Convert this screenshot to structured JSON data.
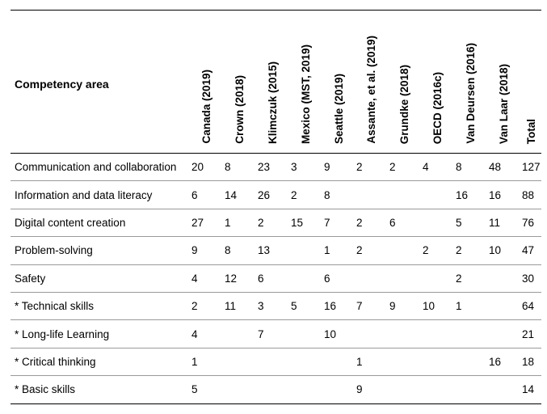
{
  "table": {
    "header_area": "Competency area",
    "columns": [
      "Canada  (2019)",
      "Crown (2018)",
      "Klimczuk  (2015)",
      "Mexico (MST, 2019)",
      "Seattle  (2019)",
      "Assante, et al.  (2019)",
      "Grundke  (2018)",
      "OECD  (2016c)",
      "Van Deursen  (2016)",
      "Van Laar (2018)",
      "Total"
    ],
    "rows": [
      {
        "label": "Communication and collaboration",
        "cells": [
          "20",
          "8",
          "23",
          "3",
          "9",
          "2",
          "2",
          "4",
          "8",
          "48",
          "127"
        ]
      },
      {
        "label": "Information and data literacy",
        "cells": [
          "6",
          "14",
          "26",
          "2",
          "8",
          "",
          "",
          "",
          "16",
          "16",
          "88"
        ]
      },
      {
        "label": "Digital content creation",
        "cells": [
          "27",
          "1",
          "2",
          "15",
          "7",
          "2",
          "6",
          "",
          "5",
          "11",
          "76"
        ]
      },
      {
        "label": "Problem-solving",
        "cells": [
          "9",
          "8",
          "13",
          "",
          "1",
          "2",
          "",
          "2",
          "2",
          "10",
          "47"
        ]
      },
      {
        "label": "Safety",
        "cells": [
          "4",
          "12",
          "6",
          "",
          "6",
          "",
          "",
          "",
          "2",
          "",
          "30"
        ]
      },
      {
        "label": "* Technical skills",
        "cells": [
          "2",
          "11",
          "3",
          "5",
          "16",
          "7",
          "9",
          "10",
          "1",
          "",
          "64"
        ]
      },
      {
        "label": "* Long-life Learning",
        "cells": [
          "4",
          "",
          "7",
          "",
          "10",
          "",
          "",
          "",
          "",
          "",
          "21"
        ]
      },
      {
        "label": "* Critical thinking",
        "cells": [
          "1",
          "",
          "",
          "",
          "",
          "1",
          "",
          "",
          "",
          "16",
          "18"
        ]
      },
      {
        "label": "* Basic skills",
        "cells": [
          "5",
          "",
          "",
          "",
          "",
          "9",
          "",
          "",
          "",
          "",
          "14"
        ]
      }
    ]
  }
}
